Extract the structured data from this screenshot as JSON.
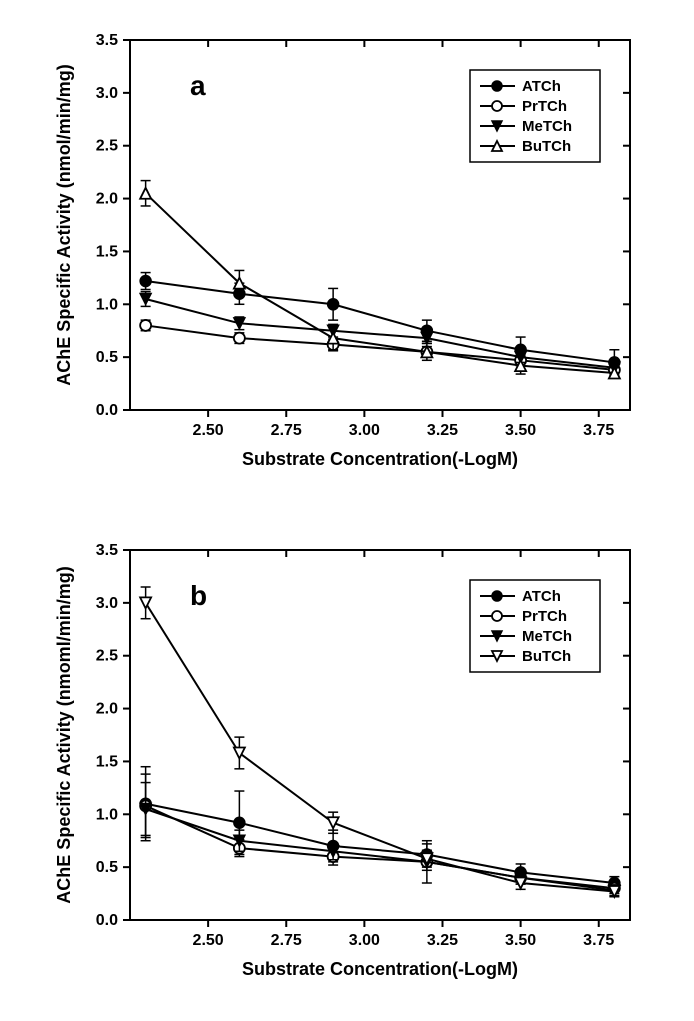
{
  "background_color": "#ffffff",
  "chart_a": {
    "type": "line",
    "panel_label": "a",
    "panel_label_fontsize": 28,
    "xlabel": "Substrate Concentration(-LogM)",
    "ylabel": "AChE Specific Activity (nmol/min/mg)",
    "label_fontsize": 18,
    "tick_fontsize": 16,
    "xlim": [
      2.25,
      3.85
    ],
    "ylim": [
      0.0,
      3.5
    ],
    "xticks": [
      2.5,
      2.75,
      3.0,
      3.25,
      3.5,
      3.75
    ],
    "yticks": [
      0.0,
      0.5,
      1.0,
      1.5,
      2.0,
      2.5,
      3.0,
      3.5
    ],
    "legend": {
      "position": "upper-right-inside",
      "items": [
        "ATCh",
        "PrTCh",
        "MeTCh",
        "BuTCh"
      ]
    },
    "series": [
      {
        "name": "ATCh",
        "marker": "circle-filled",
        "color": "#000000",
        "x": [
          2.3,
          2.6,
          2.9,
          3.2,
          3.5,
          3.8
        ],
        "y": [
          1.22,
          1.1,
          1.0,
          0.75,
          0.57,
          0.45
        ],
        "err": [
          0.08,
          0.1,
          0.15,
          0.1,
          0.12,
          0.12
        ]
      },
      {
        "name": "PrTCh",
        "marker": "circle-open",
        "color": "#000000",
        "x": [
          2.3,
          2.6,
          2.9,
          3.2,
          3.5,
          3.8
        ],
        "y": [
          0.8,
          0.68,
          0.62,
          0.55,
          0.47,
          0.38
        ],
        "err": [
          0.05,
          0.05,
          0.05,
          0.05,
          0.05,
          0.05
        ]
      },
      {
        "name": "MeTCh",
        "marker": "triangle-down-filled",
        "color": "#000000",
        "x": [
          2.3,
          2.6,
          2.9,
          3.2,
          3.5,
          3.8
        ],
        "y": [
          1.05,
          0.82,
          0.75,
          0.68,
          0.5,
          0.4
        ],
        "err": [
          0.07,
          0.06,
          0.06,
          0.05,
          0.05,
          0.05
        ]
      },
      {
        "name": "BuTCh",
        "marker": "triangle-up-open",
        "color": "#000000",
        "x": [
          2.3,
          2.6,
          2.9,
          3.2,
          3.5,
          3.8
        ],
        "y": [
          2.05,
          1.2,
          0.68,
          0.55,
          0.42,
          0.35
        ],
        "err": [
          0.12,
          0.12,
          0.12,
          0.08,
          0.08,
          0.05
        ]
      }
    ]
  },
  "chart_b": {
    "type": "line",
    "panel_label": "b",
    "panel_label_fontsize": 28,
    "xlabel": "Substrate Concentration(-LogM)",
    "ylabel": "AChE Specific Activity (nmoml/min/mg)",
    "label_fontsize": 18,
    "tick_fontsize": 16,
    "xlim": [
      2.25,
      3.85
    ],
    "ylim": [
      0.0,
      3.5
    ],
    "xticks": [
      2.5,
      2.75,
      3.0,
      3.25,
      3.5,
      3.75
    ],
    "yticks": [
      0.0,
      0.5,
      1.0,
      1.5,
      2.0,
      2.5,
      3.0,
      3.5
    ],
    "legend": {
      "position": "upper-right-inside",
      "items": [
        "ATCh",
        "PrTCh",
        "MeTCh",
        "BuTCh"
      ]
    },
    "series": [
      {
        "name": "ATCh",
        "marker": "circle-filled",
        "color": "#000000",
        "x": [
          2.3,
          2.6,
          2.9,
          3.2,
          3.5,
          3.8
        ],
        "y": [
          1.1,
          0.92,
          0.7,
          0.62,
          0.45,
          0.35
        ],
        "err": [
          0.35,
          0.3,
          0.15,
          0.1,
          0.08,
          0.06
        ]
      },
      {
        "name": "PrTCh",
        "marker": "circle-open",
        "color": "#000000",
        "x": [
          2.3,
          2.6,
          2.9,
          3.2,
          3.5,
          3.8
        ],
        "y": [
          1.08,
          0.68,
          0.6,
          0.55,
          0.4,
          0.3
        ],
        "err": [
          0.3,
          0.08,
          0.08,
          0.08,
          0.06,
          0.05
        ]
      },
      {
        "name": "MeTCh",
        "marker": "triangle-down-filled",
        "color": "#000000",
        "x": [
          2.3,
          2.6,
          2.9,
          3.2,
          3.5,
          3.8
        ],
        "y": [
          1.05,
          0.75,
          0.65,
          0.55,
          0.4,
          0.28
        ],
        "err": [
          0.25,
          0.1,
          0.08,
          0.2,
          0.06,
          0.05
        ]
      },
      {
        "name": "BuTCh",
        "marker": "triangle-down-open",
        "color": "#000000",
        "x": [
          2.3,
          2.6,
          2.9,
          3.2,
          3.5,
          3.8
        ],
        "y": [
          3.0,
          1.58,
          0.92,
          0.58,
          0.35,
          0.27
        ],
        "err": [
          0.15,
          0.15,
          0.1,
          0.08,
          0.06,
          0.05
        ]
      }
    ]
  }
}
